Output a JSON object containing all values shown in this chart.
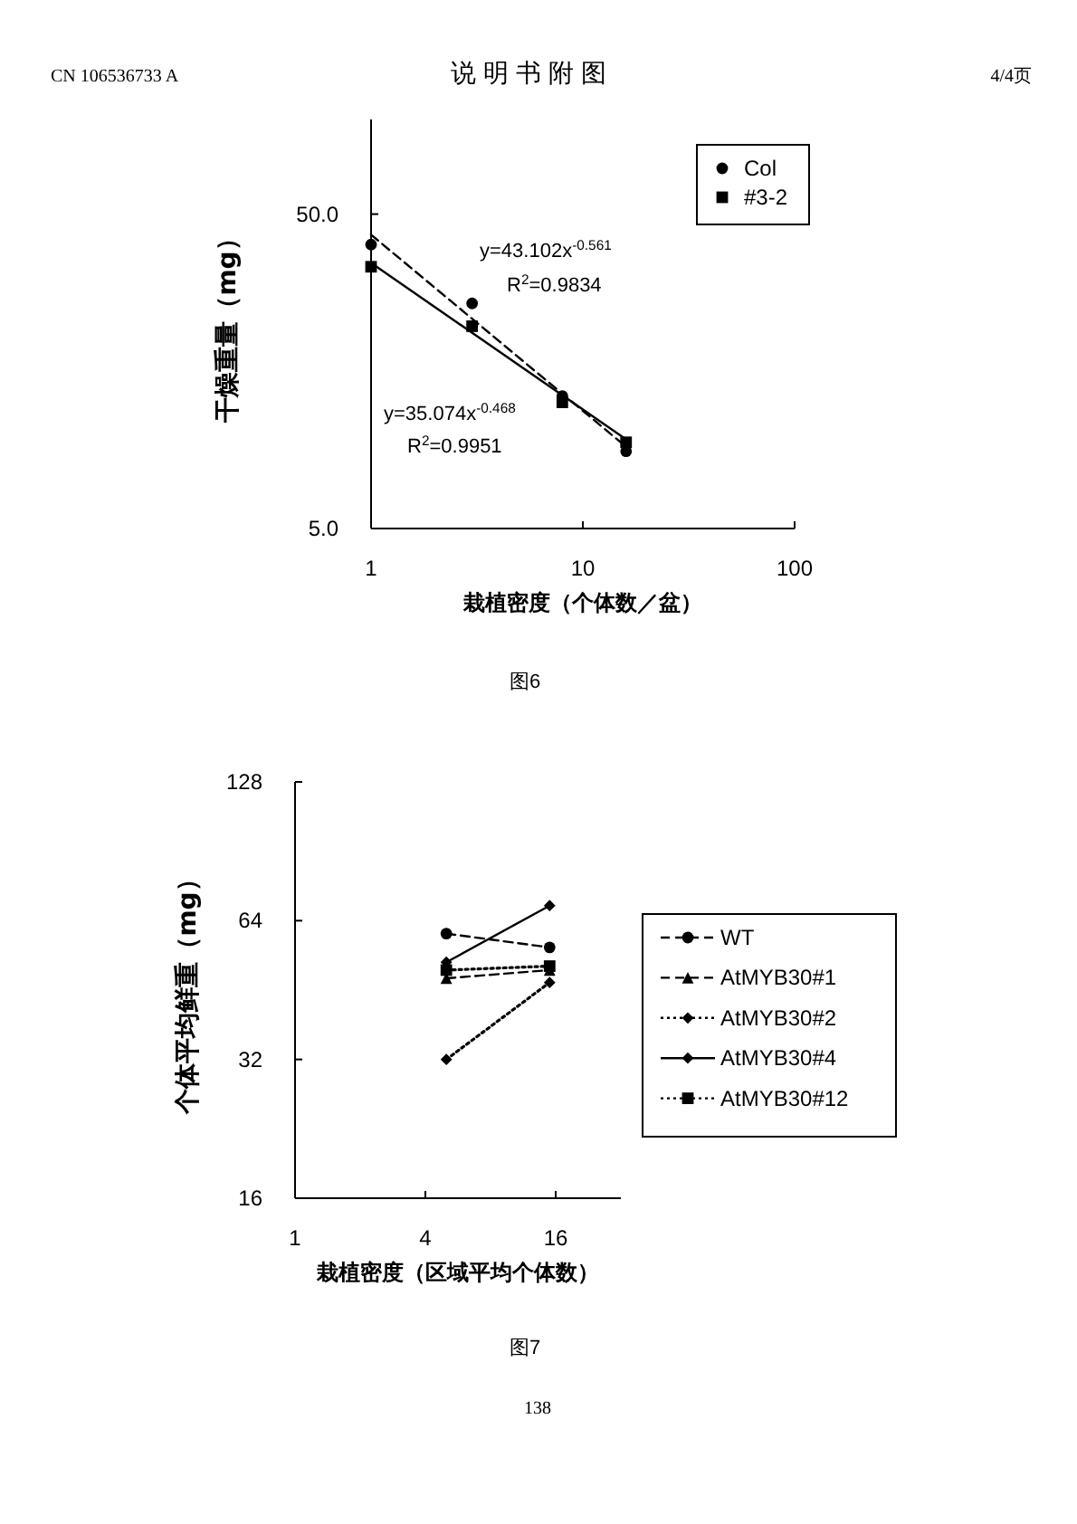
{
  "chart_data": [
    {
      "type": "scatter",
      "ylabel": "干燥重量（mg）",
      "xlabel": "栽植密度（个体数／盆）",
      "log": "xy",
      "xlim": [
        1,
        100
      ],
      "xticks": [
        1,
        10,
        100
      ],
      "ylim": [
        5,
        100
      ],
      "yticks": [
        {
          "value": 5,
          "label": "5.0"
        },
        {
          "value": 50,
          "label": "50.0"
        }
      ],
      "grid": false,
      "legend": "top right",
      "series": [
        {
          "name": "Col",
          "marker": "circle",
          "color": "#000000",
          "x": [
            1,
            3,
            8,
            16
          ],
          "values": [
            40,
            26,
            13.2,
            8.8
          ]
        },
        {
          "name": "#3-2",
          "marker": "square",
          "color": "#000000",
          "x": [
            1,
            3,
            8,
            16
          ],
          "values": [
            34,
            22,
            12.6,
            9.4
          ]
        },
        {
          "type": "line",
          "marker": "none",
          "line_style": "dashed",
          "color": "#000000",
          "x": [
            1,
            16
          ],
          "values": [
            43,
            9.1
          ]
        },
        {
          "type": "line",
          "marker": "none",
          "line_style": "solid",
          "color": "#000000",
          "x": [
            1,
            16
          ],
          "values": [
            35,
            9.6
          ]
        }
      ],
      "annotations": [
        "y=43.102x$^{-0.561}$",
        "R$^{2}$=0.9834",
        "y=35.074x$^{-0.468}$",
        "R$^{2}$=0.9951",
        "CN 106536733 A",
        "说 明 书 附 图",
        "4/4页",
        "图6"
      ]
    },
    {
      "type": "line",
      "ylabel": "个体平均鲜重（mg）",
      "xlabel": "栽植密度（区域平均个体数）",
      "log": "xy",
      "xlim": [
        1,
        32
      ],
      "xticks": [
        1,
        4,
        16
      ],
      "ylim": [
        16,
        128
      ],
      "yticks": [
        16,
        32,
        64,
        128
      ],
      "grid": false,
      "legend": "right",
      "series": [
        {
          "name": "WT",
          "marker": "circle",
          "line_style": "dashed",
          "color": "#000000",
          "x": [
            5,
            15
          ],
          "values": [
            60,
            56
          ]
        },
        {
          "name": "AtMYB30#1",
          "marker": "triangle",
          "line_style": "dashed",
          "color": "#000000",
          "x": [
            5,
            15
          ],
          "values": [
            48,
            50
          ]
        },
        {
          "name": "AtMYB30#2",
          "marker": "diamond",
          "line_style": "dotted",
          "color": "#000000",
          "x": [
            5,
            15
          ],
          "values": [
            32,
            47
          ]
        },
        {
          "name": "AtMYB30#4",
          "marker": "diamond",
          "line_style": "solid",
          "color": "#000000",
          "x": [
            5,
            15
          ],
          "values": [
            52,
            69
          ]
        },
        {
          "name": "AtMYB30#12",
          "marker": "square",
          "line_style": "dotted",
          "color": "#000000",
          "x": [
            5,
            15
          ],
          "values": [
            50,
            51
          ]
        }
      ],
      "annotations": [
        "图7",
        "138"
      ]
    }
  ]
}
